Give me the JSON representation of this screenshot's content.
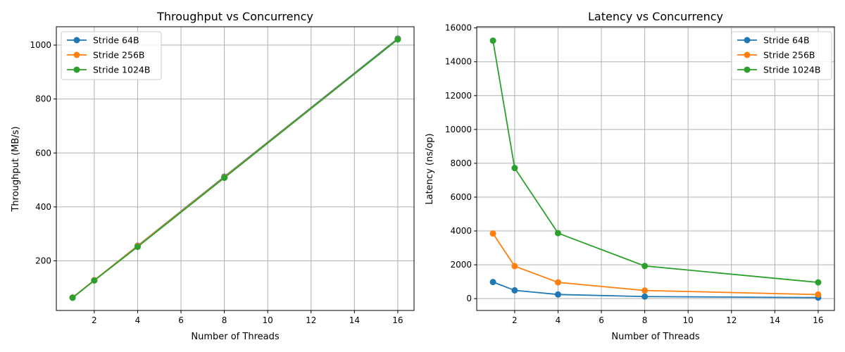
{
  "chart_data": [
    {
      "type": "line",
      "title": "Throughput vs Concurrency",
      "xlabel": "Number of Threads",
      "ylabel": "Throughput (MB/s)",
      "x": [
        1,
        2,
        4,
        8,
        16
      ],
      "xlim": [
        0.25,
        16.75
      ],
      "ylim": [
        16,
        1068
      ],
      "xticks": [
        2,
        4,
        6,
        8,
        10,
        12,
        14,
        16
      ],
      "yticks": [
        200,
        400,
        600,
        800,
        1000
      ],
      "grid": true,
      "legend_position": "upper-left",
      "series": [
        {
          "name": "Stride 64B",
          "color": "#1f77b4",
          "values": [
            64,
            128,
            256,
            512,
            1024
          ]
        },
        {
          "name": "Stride 256B",
          "color": "#ff7f0e",
          "values": [
            64,
            128,
            255,
            510,
            1022
          ]
        },
        {
          "name": "Stride 1024B",
          "color": "#2ca02c",
          "values": [
            63,
            127,
            252,
            508,
            1021
          ]
        }
      ]
    },
    {
      "type": "line",
      "title": "Latency vs Concurrency",
      "xlabel": "Number of Threads",
      "ylabel": "Latency (ns/op)",
      "x": [
        1,
        2,
        4,
        8,
        16
      ],
      "xlim": [
        0.25,
        16.75
      ],
      "ylim": [
        -700,
        16070
      ],
      "xticks": [
        2,
        4,
        6,
        8,
        10,
        12,
        14,
        16
      ],
      "yticks": [
        0,
        2000,
        4000,
        6000,
        8000,
        10000,
        12000,
        14000,
        16000
      ],
      "grid": true,
      "legend_position": "upper-right",
      "series": [
        {
          "name": "Stride 64B",
          "color": "#1f77b4",
          "values": [
            980,
            490,
            245,
            122,
            61
          ]
        },
        {
          "name": "Stride 256B",
          "color": "#ff7f0e",
          "values": [
            3850,
            1920,
            960,
            480,
            240
          ]
        },
        {
          "name": "Stride 1024B",
          "color": "#2ca02c",
          "values": [
            15250,
            7720,
            3870,
            1930,
            960
          ]
        }
      ]
    }
  ]
}
